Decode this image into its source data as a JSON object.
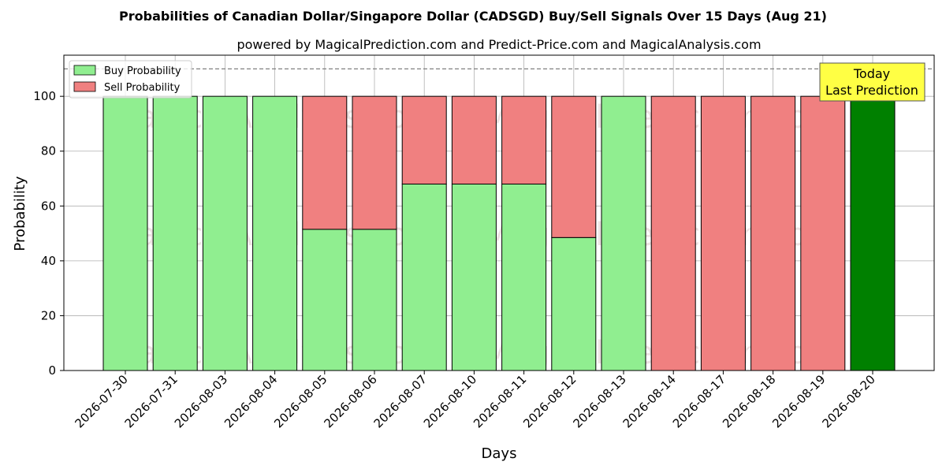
{
  "chart_data": {
    "type": "bar",
    "title": "Probabilities of Canadian Dollar/Singapore Dollar (CADSGD) Buy/Sell Signals Over 15 Days (Aug 21)",
    "subtitle": "powered by MagicalPrediction.com and Predict-Price.com and MagicalAnalysis.com",
    "xlabel": "Days",
    "ylabel": "Probability",
    "ylim": [
      0,
      115
    ],
    "yticks": [
      0,
      20,
      40,
      60,
      80,
      100
    ],
    "grid": true,
    "stacked": true,
    "reference_line": 110,
    "legend_position": "top-left",
    "categories": [
      "2026-07-30",
      "2026-07-31",
      "2026-08-03",
      "2026-08-04",
      "2026-08-05",
      "2026-08-06",
      "2026-08-07",
      "2026-08-10",
      "2026-08-11",
      "2026-08-12",
      "2026-08-13",
      "2026-08-14",
      "2026-08-17",
      "2026-08-18",
      "2026-08-19",
      "2026-08-20"
    ],
    "series": [
      {
        "name": "Buy Probability",
        "color": "#90ee90",
        "values": [
          100,
          100,
          100,
          100,
          51.5,
          51.5,
          68,
          68,
          68,
          48.5,
          100,
          0,
          0,
          0,
          0,
          100
        ]
      },
      {
        "name": "Sell Probability",
        "color": "#f08080",
        "values": [
          0,
          0,
          0,
          0,
          48.5,
          48.5,
          32,
          32,
          32,
          51.5,
          0,
          100,
          100,
          100,
          100,
          0
        ]
      }
    ],
    "highlight": {
      "index": 15,
      "color": "#008000"
    },
    "annotation": {
      "line1": "Today",
      "line2": "Last Prediction",
      "color": "#ffff44"
    },
    "watermarks": [
      "MagicalAnalysis.com",
      "MagicalPrediction.com"
    ]
  }
}
